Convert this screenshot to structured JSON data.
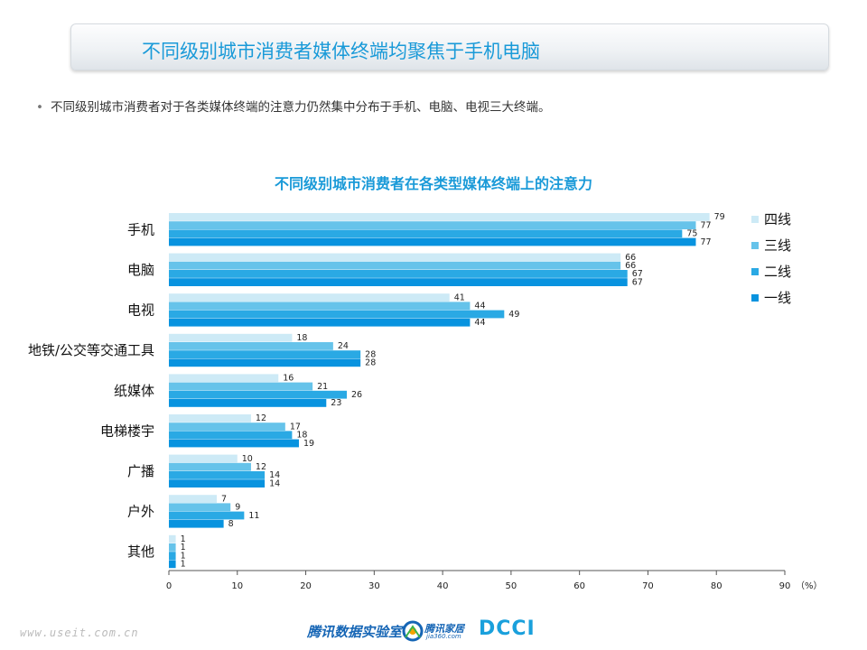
{
  "header": {
    "title": "不同级别城市消费者媒体终端均聚焦于手机电脑"
  },
  "bullet": "不同级别城市消费者对于各类媒体终端的注意力仍然集中分布于手机、电脑、电视三大终端。",
  "chart_data": {
    "type": "bar",
    "orientation": "horizontal",
    "title": "不同级别城市消费者在各类型媒体终端上的注意力",
    "categories": [
      "手机",
      "电脑",
      "电视",
      "地铁/公交等交通工具",
      "纸媒体",
      "电梯楼宇",
      "广播",
      "户外",
      "其他"
    ],
    "series": [
      {
        "name": "四线",
        "color": "#cdeaf6",
        "values": [
          79,
          66,
          41,
          18,
          16,
          12,
          10,
          7,
          1
        ]
      },
      {
        "name": "三线",
        "color": "#66c3ea",
        "values": [
          77,
          66,
          44,
          24,
          21,
          17,
          12,
          9,
          1
        ]
      },
      {
        "name": "二线",
        "color": "#2aa9e4",
        "values": [
          75,
          67,
          49,
          28,
          26,
          18,
          14,
          11,
          1
        ]
      },
      {
        "name": "一线",
        "color": "#0893df",
        "values": [
          77,
          67,
          44,
          28,
          23,
          19,
          14,
          8,
          1
        ]
      }
    ],
    "xlim": [
      0,
      90
    ],
    "xticks": [
      0,
      10,
      20,
      30,
      40,
      50,
      60,
      70,
      80,
      90
    ],
    "x_unit": "（%）",
    "legend": "right",
    "legend_order": [
      "四线",
      "三线",
      "二线",
      "一线"
    ],
    "grid": false
  },
  "footer": {
    "watermark": "www.useit.com.cn",
    "brand1": "腾讯数据实验室",
    "brand2": "腾讯家居",
    "brand2_sub": "jia360.com",
    "brand3": "DCCI"
  }
}
